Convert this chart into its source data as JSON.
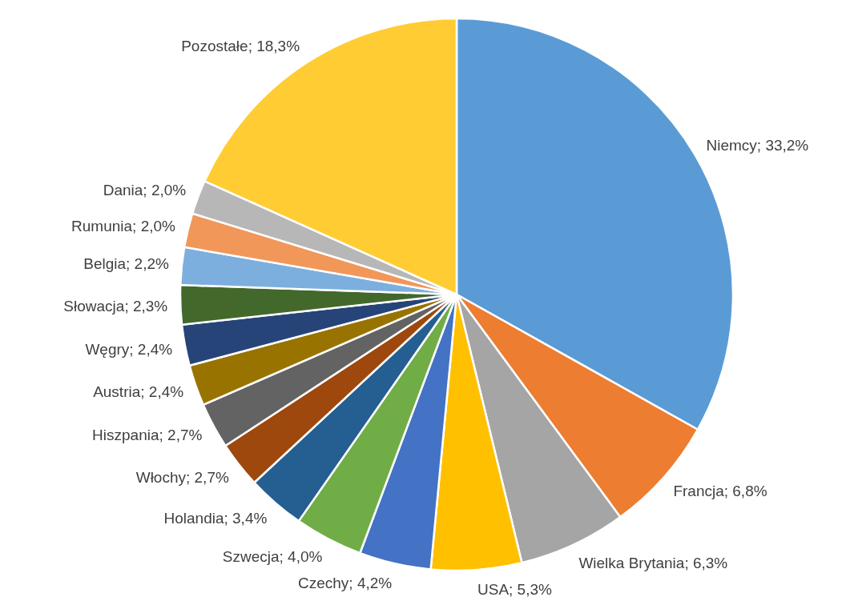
{
  "chart_data": {
    "type": "pie",
    "categories": [
      "Niemcy",
      "Francja",
      "Wielka Brytania",
      "USA",
      "Czechy",
      "Szwecja",
      "Holandia",
      "Włochy",
      "Hiszpania",
      "Austria",
      "Węgry",
      "Słowacja",
      "Belgia",
      "Rumunia",
      "Dania",
      "Pozostałe"
    ],
    "values": [
      33.2,
      6.8,
      6.3,
      5.3,
      4.2,
      4.0,
      3.4,
      2.7,
      2.7,
      2.4,
      2.4,
      2.3,
      2.2,
      2.0,
      2.0,
      18.3
    ],
    "value_labels": [
      "33,2%",
      "6,8%",
      "6,3%",
      "5,3%",
      "4,2%",
      "4,0%",
      "3,4%",
      "2,7%",
      "2,7%",
      "2,4%",
      "2,4%",
      "2,3%",
      "2,2%",
      "2,0%",
      "2,0%",
      "18,3%"
    ],
    "colors": [
      "#5b9bd5",
      "#ed7d31",
      "#a5a5a5",
      "#ffc000",
      "#4472c4",
      "#70ad47",
      "#255e91",
      "#9e480e",
      "#636363",
      "#997300",
      "#264478",
      "#43682b",
      "#7cafdd",
      "#f1975a",
      "#b7b7b7",
      "#ffcd33"
    ],
    "legend": false
  }
}
